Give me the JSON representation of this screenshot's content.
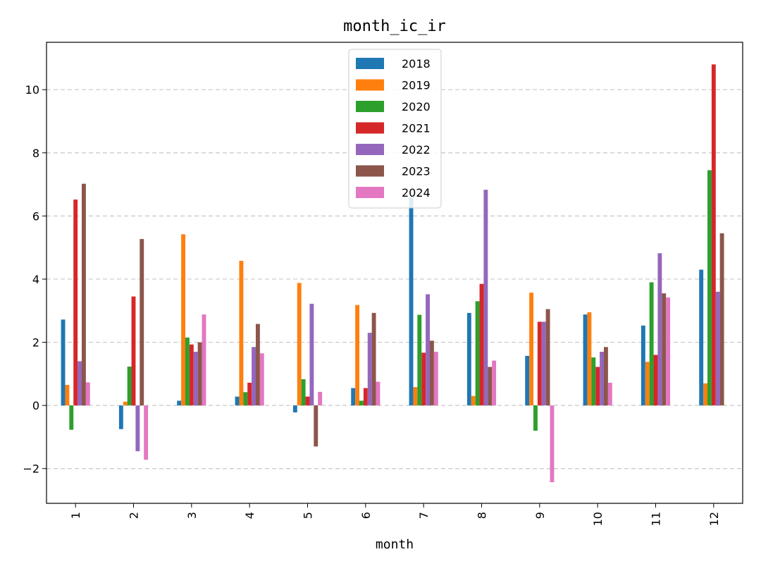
{
  "chart_data": {
    "type": "bar",
    "title": "month_ic_ir",
    "xlabel": "month",
    "ylabel": "",
    "categories": [
      "1",
      "2",
      "3",
      "4",
      "5",
      "6",
      "7",
      "8",
      "9",
      "10",
      "11",
      "12"
    ],
    "ylim": [
      -3.1,
      11.5
    ],
    "yticks": [
      -2,
      0,
      2,
      4,
      6,
      8,
      10
    ],
    "yticklabels": [
      "−2",
      "0",
      "2",
      "4",
      "6",
      "8",
      "10"
    ],
    "grid": "y-dashed",
    "legend_position": "top-center",
    "series": [
      {
        "name": "2018",
        "color": "#1f77b4",
        "values": [
          2.72,
          -0.75,
          0.15,
          0.28,
          -0.22,
          0.55,
          6.6,
          2.93,
          1.57,
          2.88,
          2.53,
          4.3
        ]
      },
      {
        "name": "2019",
        "color": "#ff7f0e",
        "values": [
          0.65,
          0.12,
          5.42,
          4.58,
          3.88,
          3.18,
          0.58,
          0.3,
          3.57,
          2.95,
          1.38,
          0.7
        ]
      },
      {
        "name": "2020",
        "color": "#2ca02c",
        "values": [
          -0.77,
          1.23,
          2.15,
          0.42,
          0.83,
          0.15,
          2.87,
          3.3,
          -0.8,
          1.52,
          3.9,
          7.45
        ]
      },
      {
        "name": "2021",
        "color": "#d62728",
        "values": [
          6.52,
          3.45,
          1.93,
          0.72,
          0.28,
          0.55,
          1.67,
          3.85,
          2.65,
          1.22,
          1.6,
          10.8
        ]
      },
      {
        "name": "2022",
        "color": "#9467bd",
        "values": [
          1.4,
          -1.45,
          1.7,
          1.85,
          3.22,
          2.3,
          3.52,
          6.83,
          2.65,
          1.7,
          4.82,
          3.6
        ]
      },
      {
        "name": "2023",
        "color": "#8c564b",
        "values": [
          7.02,
          5.27,
          2.0,
          2.58,
          -1.3,
          2.93,
          2.05,
          1.22,
          3.05,
          1.85,
          3.55,
          5.45
        ]
      },
      {
        "name": "2024",
        "color": "#e377c2",
        "values": [
          0.73,
          -1.72,
          2.88,
          1.65,
          0.43,
          0.75,
          1.7,
          1.42,
          -2.43,
          0.72,
          3.42,
          null
        ]
      }
    ]
  }
}
